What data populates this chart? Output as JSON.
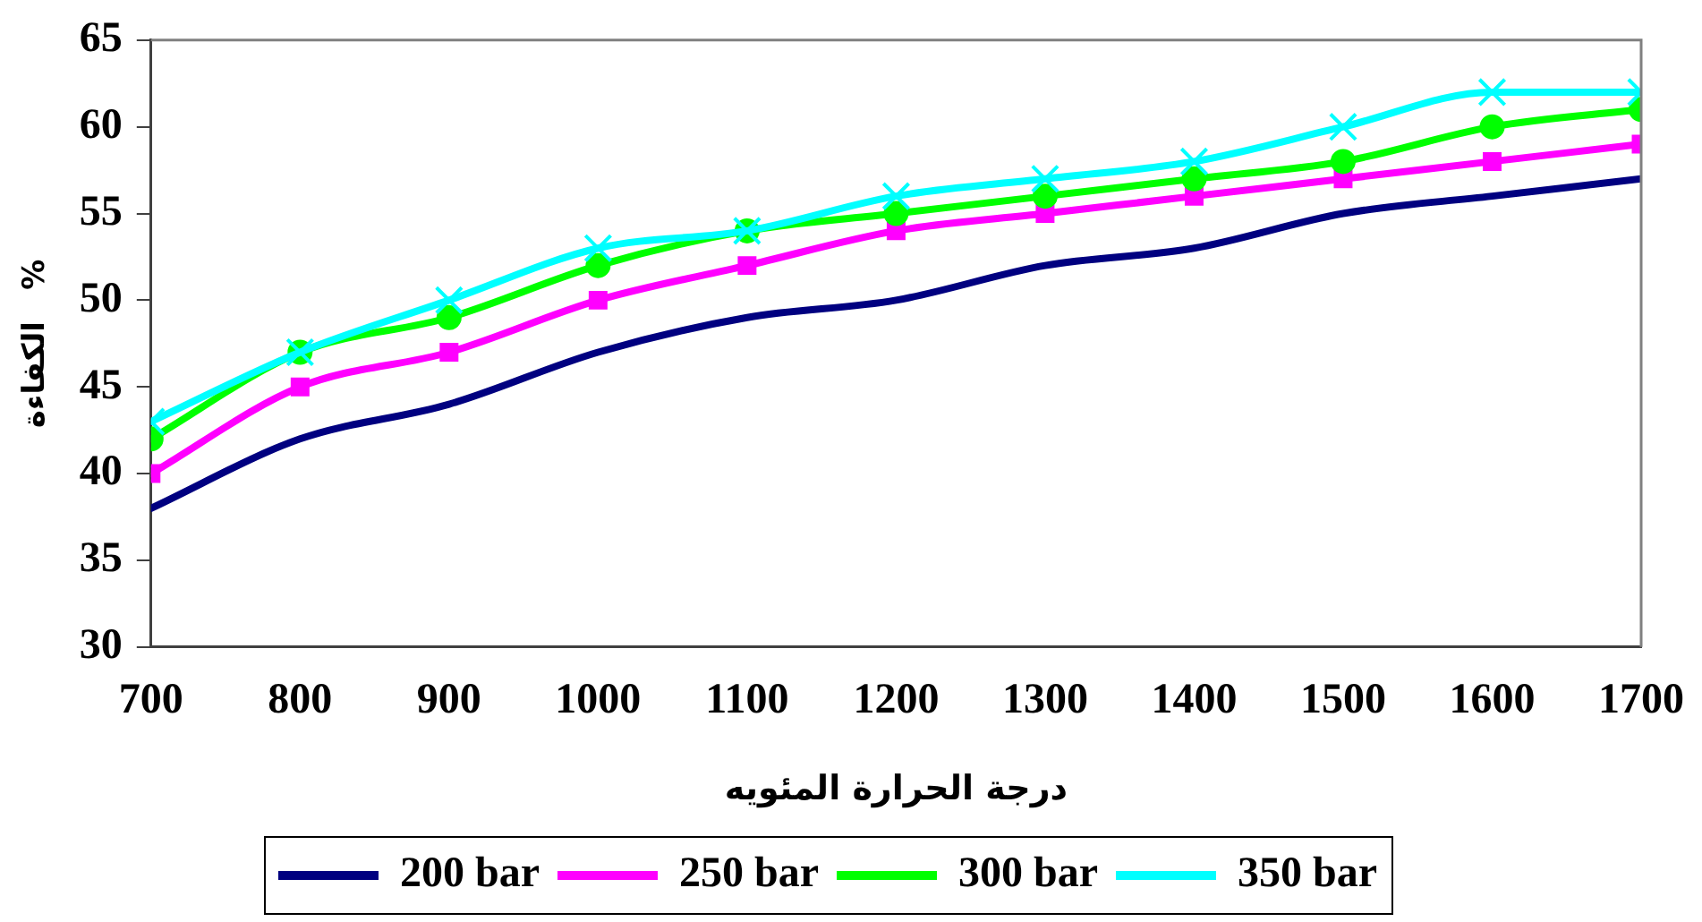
{
  "chart_data": {
    "type": "line",
    "xlabel": "درجة الحرارة المئويه",
    "ylabel": "الكفاءة   %",
    "x": [
      700,
      800,
      900,
      1000,
      1100,
      1200,
      1300,
      1400,
      1500,
      1600,
      1700
    ],
    "xlim": [
      700,
      1700
    ],
    "xticks": [
      700,
      800,
      900,
      1000,
      1100,
      1200,
      1300,
      1400,
      1500,
      1600,
      1700
    ],
    "ylim": [
      30,
      65
    ],
    "yticks": [
      30,
      35,
      40,
      45,
      50,
      55,
      60,
      65
    ],
    "grid": false,
    "legend": "bottom",
    "series": [
      {
        "name": "200 bar",
        "color": "#000080",
        "marker": "none",
        "values": [
          38,
          42,
          44,
          47,
          49,
          50,
          52,
          53,
          55,
          56,
          57
        ]
      },
      {
        "name": "250 bar",
        "color": "#ff00ff",
        "marker": "square",
        "values": [
          40,
          45,
          47,
          50,
          52,
          54,
          55,
          56,
          57,
          58,
          59
        ]
      },
      {
        "name": "300 bar",
        "color": "#00ff00",
        "marker": "circle",
        "values": [
          42,
          47,
          49,
          52,
          54,
          55,
          56,
          57,
          58,
          60,
          61
        ]
      },
      {
        "name": "350 bar",
        "color": "#00ffff",
        "marker": "cross",
        "values": [
          43,
          47,
          50,
          53,
          54,
          56,
          57,
          58,
          60,
          62,
          62
        ]
      }
    ]
  }
}
